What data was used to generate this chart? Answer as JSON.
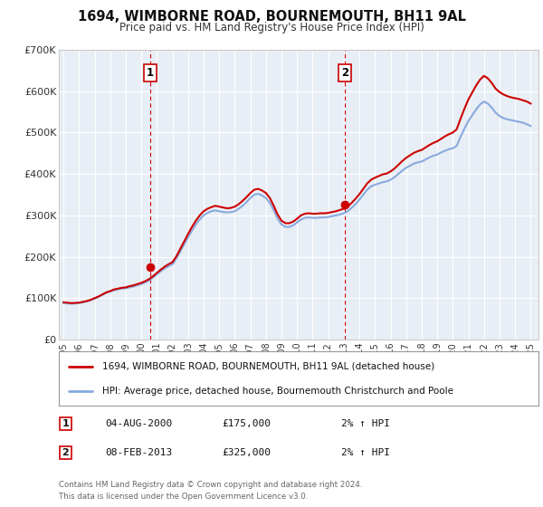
{
  "title": "1694, WIMBORNE ROAD, BOURNEMOUTH, BH11 9AL",
  "subtitle": "Price paid vs. HM Land Registry's House Price Index (HPI)",
  "background_color": "#ffffff",
  "plot_bg_color": "#e8eef5",
  "grid_color": "#ffffff",
  "ylim": [
    0,
    700000
  ],
  "yticks": [
    0,
    100000,
    200000,
    300000,
    400000,
    500000,
    600000,
    700000
  ],
  "ytick_labels": [
    "£0",
    "£100K",
    "£200K",
    "£300K",
    "£400K",
    "£500K",
    "£600K",
    "£700K"
  ],
  "xlim_start": 1994.7,
  "xlim_end": 2025.5,
  "xtick_years": [
    1995,
    1996,
    1997,
    1998,
    1999,
    2000,
    2001,
    2002,
    2003,
    2004,
    2005,
    2006,
    2007,
    2008,
    2009,
    2010,
    2011,
    2012,
    2013,
    2014,
    2015,
    2016,
    2017,
    2018,
    2019,
    2020,
    2021,
    2022,
    2023,
    2024,
    2025
  ],
  "sale1_x": 2000.58,
  "sale1_y": 175000,
  "sale1_label": "1",
  "sale1_date": "04-AUG-2000",
  "sale1_price": "£175,000",
  "sale1_hpi": "2% ↑ HPI",
  "sale2_x": 2013.08,
  "sale2_y": 325000,
  "sale2_label": "2",
  "sale2_date": "08-FEB-2013",
  "sale2_price": "£325,000",
  "sale2_hpi": "2% ↑ HPI",
  "price_line_color": "#cc0000",
  "hpi_line_color": "#88aadd",
  "marker_color": "#cc0000",
  "vline_color": "#cc0000",
  "legend_label_price": "1694, WIMBORNE ROAD, BOURNEMOUTH, BH11 9AL (detached house)",
  "legend_label_hpi": "HPI: Average price, detached house, Bournemouth Christchurch and Poole",
  "footnote_line1": "Contains HM Land Registry data © Crown copyright and database right 2024.",
  "footnote_line2": "This data is licensed under the Open Government Licence v3.0.",
  "hpi_data_x": [
    1995.0,
    1995.25,
    1995.5,
    1995.75,
    1996.0,
    1996.25,
    1996.5,
    1996.75,
    1997.0,
    1997.25,
    1997.5,
    1997.75,
    1998.0,
    1998.25,
    1998.5,
    1998.75,
    1999.0,
    1999.25,
    1999.5,
    1999.75,
    2000.0,
    2000.25,
    2000.5,
    2000.75,
    2001.0,
    2001.25,
    2001.5,
    2001.75,
    2002.0,
    2002.25,
    2002.5,
    2002.75,
    2003.0,
    2003.25,
    2003.5,
    2003.75,
    2004.0,
    2004.25,
    2004.5,
    2004.75,
    2005.0,
    2005.25,
    2005.5,
    2005.75,
    2006.0,
    2006.25,
    2006.5,
    2006.75,
    2007.0,
    2007.25,
    2007.5,
    2007.75,
    2008.0,
    2008.25,
    2008.5,
    2008.75,
    2009.0,
    2009.25,
    2009.5,
    2009.75,
    2010.0,
    2010.25,
    2010.5,
    2010.75,
    2011.0,
    2011.25,
    2011.5,
    2011.75,
    2012.0,
    2012.25,
    2012.5,
    2012.75,
    2013.0,
    2013.25,
    2013.5,
    2013.75,
    2014.0,
    2014.25,
    2014.5,
    2014.75,
    2015.0,
    2015.25,
    2015.5,
    2015.75,
    2016.0,
    2016.25,
    2016.5,
    2016.75,
    2017.0,
    2017.25,
    2017.5,
    2017.75,
    2018.0,
    2018.25,
    2018.5,
    2018.75,
    2019.0,
    2019.25,
    2019.5,
    2019.75,
    2020.0,
    2020.25,
    2020.5,
    2020.75,
    2021.0,
    2021.25,
    2021.5,
    2021.75,
    2022.0,
    2022.25,
    2022.5,
    2022.75,
    2023.0,
    2023.25,
    2023.5,
    2023.75,
    2024.0,
    2024.25,
    2024.5,
    2024.75,
    2025.0
  ],
  "hpi_data_y": [
    88000,
    87000,
    86500,
    87000,
    88000,
    90000,
    92000,
    95000,
    99000,
    103000,
    108000,
    113000,
    116000,
    119000,
    121000,
    123000,
    124000,
    126000,
    128000,
    131000,
    134000,
    138000,
    143000,
    150000,
    158000,
    165000,
    172000,
    177000,
    182000,
    196000,
    213000,
    230000,
    247000,
    263000,
    278000,
    290000,
    300000,
    306000,
    310000,
    312000,
    310000,
    308000,
    307000,
    308000,
    310000,
    316000,
    323000,
    332000,
    342000,
    350000,
    352000,
    348000,
    342000,
    330000,
    312000,
    292000,
    278000,
    272000,
    272000,
    276000,
    283000,
    290000,
    294000,
    295000,
    294000,
    294000,
    295000,
    295000,
    296000,
    298000,
    300000,
    302000,
    305000,
    310000,
    318000,
    327000,
    338000,
    350000,
    362000,
    370000,
    374000,
    377000,
    380000,
    382000,
    386000,
    392000,
    400000,
    408000,
    415000,
    420000,
    425000,
    428000,
    430000,
    435000,
    440000,
    444000,
    447000,
    452000,
    456000,
    460000,
    462000,
    468000,
    490000,
    510000,
    528000,
    542000,
    556000,
    568000,
    575000,
    570000,
    560000,
    548000,
    540000,
    535000,
    532000,
    530000,
    528000,
    526000,
    524000,
    520000,
    516000
  ],
  "price_data_x": [
    1995.0,
    1995.25,
    1995.5,
    1995.75,
    1996.0,
    1996.25,
    1996.5,
    1996.75,
    1997.0,
    1997.25,
    1997.5,
    1997.75,
    1998.0,
    1998.25,
    1998.5,
    1998.75,
    1999.0,
    1999.25,
    1999.5,
    1999.75,
    2000.0,
    2000.25,
    2000.5,
    2000.75,
    2001.0,
    2001.25,
    2001.5,
    2001.75,
    2002.0,
    2002.25,
    2002.5,
    2002.75,
    2003.0,
    2003.25,
    2003.5,
    2003.75,
    2004.0,
    2004.25,
    2004.5,
    2004.75,
    2005.0,
    2005.25,
    2005.5,
    2005.75,
    2006.0,
    2006.25,
    2006.5,
    2006.75,
    2007.0,
    2007.25,
    2007.5,
    2007.75,
    2008.0,
    2008.25,
    2008.5,
    2008.75,
    2009.0,
    2009.25,
    2009.5,
    2009.75,
    2010.0,
    2010.25,
    2010.5,
    2010.75,
    2011.0,
    2011.25,
    2011.5,
    2011.75,
    2012.0,
    2012.25,
    2012.5,
    2012.75,
    2013.0,
    2013.25,
    2013.5,
    2013.75,
    2014.0,
    2014.25,
    2014.5,
    2014.75,
    2015.0,
    2015.25,
    2015.5,
    2015.75,
    2016.0,
    2016.25,
    2016.5,
    2016.75,
    2017.0,
    2017.25,
    2017.5,
    2017.75,
    2018.0,
    2018.25,
    2018.5,
    2018.75,
    2019.0,
    2019.25,
    2019.5,
    2019.75,
    2020.0,
    2020.25,
    2020.5,
    2020.75,
    2021.0,
    2021.25,
    2021.5,
    2021.75,
    2022.0,
    2022.25,
    2022.5,
    2022.75,
    2023.0,
    2023.25,
    2023.5,
    2023.75,
    2024.0,
    2024.25,
    2024.5,
    2024.75,
    2025.0
  ],
  "price_data_y": [
    90000,
    89000,
    88000,
    88500,
    89000,
    91000,
    93000,
    96000,
    100000,
    104000,
    109000,
    114000,
    117000,
    121000,
    123000,
    125000,
    126000,
    129000,
    131000,
    134000,
    137000,
    141000,
    146000,
    153000,
    161000,
    169000,
    176000,
    182000,
    187000,
    201000,
    219000,
    237000,
    255000,
    272000,
    287000,
    300000,
    310000,
    316000,
    320000,
    323000,
    321000,
    319000,
    317000,
    318000,
    321000,
    327000,
    335000,
    344000,
    354000,
    362000,
    364000,
    360000,
    354000,
    342000,
    323000,
    302000,
    287000,
    281000,
    281000,
    285000,
    292000,
    300000,
    304000,
    305000,
    304000,
    304000,
    305000,
    305000,
    306000,
    308000,
    310000,
    313000,
    316000,
    321000,
    330000,
    340000,
    351000,
    364000,
    377000,
    386000,
    391000,
    395000,
    399000,
    401000,
    406000,
    413000,
    422000,
    431000,
    439000,
    445000,
    451000,
    455000,
    458000,
    464000,
    470000,
    475000,
    479000,
    485000,
    491000,
    496000,
    500000,
    508000,
    534000,
    558000,
    580000,
    597000,
    614000,
    628000,
    637000,
    631000,
    620000,
    606000,
    598000,
    592000,
    588000,
    585000,
    583000,
    581000,
    578000,
    575000,
    570000
  ]
}
